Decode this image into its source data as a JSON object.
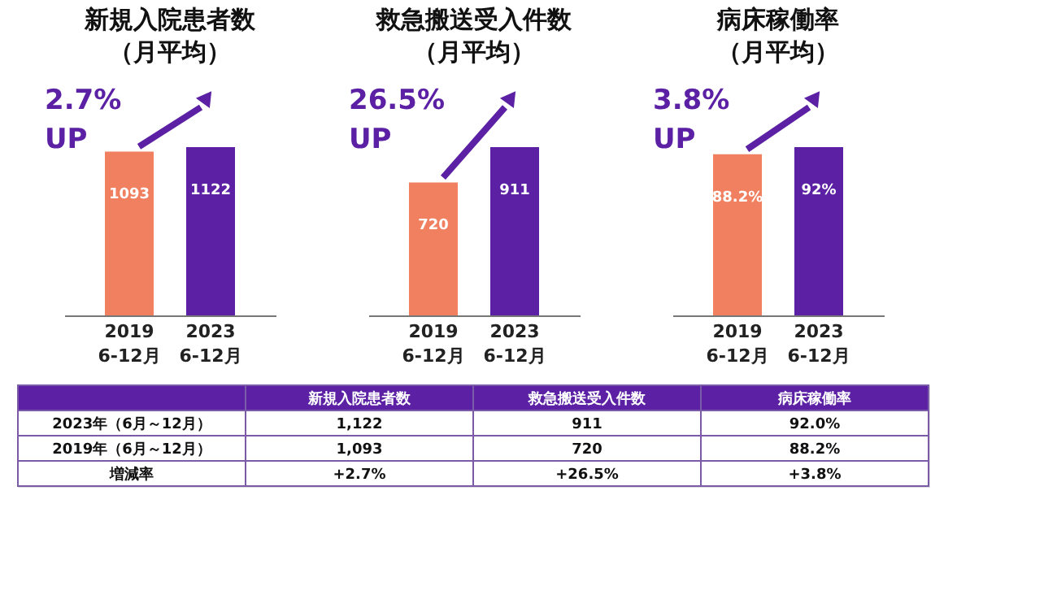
{
  "chart_data": [
    {
      "type": "bar",
      "title": "新規入院患者数（月平均）",
      "categories": [
        "2019\n6-12月",
        "2023\n6-12月"
      ],
      "values": [
        1093,
        1122
      ],
      "colors": [
        "#f0805f",
        "#5b20a4"
      ],
      "data_labels": true,
      "annotations": [
        "2.7%\nUP"
      ]
    },
    {
      "type": "bar",
      "title": "救急搬送受入件数（月平均）",
      "categories": [
        "2019\n6-12月",
        "2023\n6-12月"
      ],
      "values": [
        720,
        911
      ],
      "colors": [
        "#f0805f",
        "#5b20a4"
      ],
      "data_labels": true,
      "annotations": [
        "26.5%\nUP"
      ]
    },
    {
      "type": "bar",
      "title": "病床稼働率（月平均）",
      "categories": [
        "2019\n6-12月",
        "2023\n6-12月"
      ],
      "values": [
        88.2,
        92
      ],
      "colors": [
        "#f0805f",
        "#5b20a4"
      ],
      "value_labels": [
        "88.2%",
        "92%"
      ],
      "annotations": [
        "3.8%\nUP"
      ]
    },
    {
      "type": "other",
      "categories": [
        null,
        "新規入院患者数",
        "救急搬送受入件数",
        "病床稼働率"
      ],
      "y_categories": [
        "2023年（6月～12月）",
        "2019年（6月～12月）",
        "増減率"
      ],
      "cell_labels": [
        [
          "1,122",
          "911",
          "92.0%"
        ],
        [
          "1,093",
          "720",
          "88.2%"
        ],
        [
          "+2.7%",
          "+26.5%",
          "+3.8%"
        ]
      ]
    }
  ]
}
